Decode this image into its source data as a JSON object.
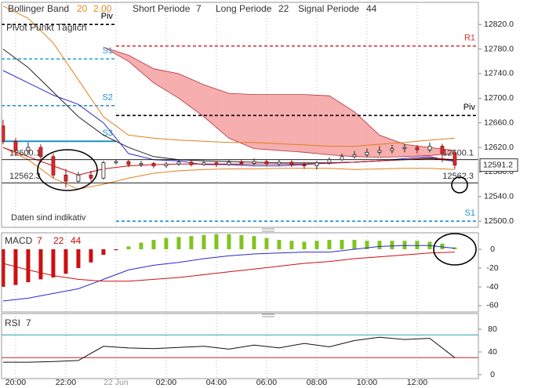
{
  "chart_data": [
    {
      "type": "candlestick",
      "indicators": {
        "bollinger_label": "Bollinger Band",
        "bollinger_period": 20,
        "bollinger_deviation": "2.00",
        "short_label": "Short Periode",
        "short": 7,
        "long_label": "Long Periode",
        "long": 22,
        "signal_label": "Signal Periode",
        "signal": 44
      },
      "pivot_title": "Pivot Punkt Täglich",
      "note": "Daten sind indikativ",
      "xlim": [
        -0.56,
        18.44
      ],
      "ylim": [
        12490,
        12856
      ],
      "yticks": [
        {
          "value": 12500,
          "label": "12500.0"
        },
        {
          "value": 12540,
          "label": "12540.0"
        },
        {
          "value": 12580,
          "label": "12580.0"
        },
        {
          "value": 12620,
          "label": "12620.0"
        },
        {
          "value": 12660,
          "label": "12660.0"
        },
        {
          "value": 12700,
          "label": "12700.0"
        },
        {
          "value": 12740,
          "label": "12740.0"
        },
        {
          "value": 12780,
          "label": "12780.0"
        },
        {
          "value": 12820,
          "label": "12820.0"
        }
      ],
      "x": [
        -0.5,
        0,
        0.5,
        1,
        1.5,
        2,
        2.5,
        3,
        3.5,
        4,
        4.5,
        5,
        5.5,
        6,
        6.5,
        7,
        7.5,
        8,
        8.5,
        9,
        9.5,
        10,
        10.5,
        11,
        11.5,
        12,
        12.5,
        13,
        13.5,
        14,
        14.5,
        15,
        15.5,
        16,
        16.5,
        17,
        17.5
      ],
      "open": [
        12655,
        12630,
        12615,
        12620,
        12605,
        12575,
        12565,
        12575,
        12570,
        12595,
        12597,
        12592,
        12594,
        12590,
        12593,
        12596,
        12592,
        12595,
        12592,
        12596,
        12594,
        12597,
        12593,
        12596,
        12592,
        12590,
        12595,
        12600,
        12605,
        12608,
        12612,
        12615,
        12618,
        12620,
        12616,
        12622,
        12610
      ],
      "high": [
        12665,
        12635,
        12628,
        12625,
        12610,
        12585,
        12580,
        12582,
        12598,
        12600,
        12600,
        12598,
        12596,
        12597,
        12600,
        12600,
        12599,
        12598,
        12600,
        12601,
        12602,
        12600,
        12600,
        12599,
        12596,
        12598,
        12604,
        12610,
        12614,
        12618,
        12622,
        12624,
        12626,
        12624,
        12628,
        12626,
        12612
      ],
      "low": [
        12625,
        12608,
        12610,
        12595,
        12570,
        12555,
        12562,
        12565,
        12568,
        12592,
        12588,
        12588,
        12586,
        12587,
        12590,
        12589,
        12590,
        12588,
        12590,
        12590,
        12591,
        12589,
        12590,
        12588,
        12585,
        12584,
        12592,
        12598,
        12602,
        12604,
        12608,
        12610,
        12612,
        12610,
        12612,
        12596,
        12585
      ],
      "close": [
        12630,
        12615,
        12620,
        12605,
        12575,
        12565,
        12575,
        12570,
        12595,
        12597,
        12592,
        12594,
        12590,
        12593,
        12596,
        12592,
        12595,
        12592,
        12596,
        12594,
        12597,
        12593,
        12596,
        12592,
        12590,
        12595,
        12600,
        12605,
        12608,
        12612,
        12615,
        12618,
        12620,
        12616,
        12622,
        12610,
        12591.2
      ],
      "up_color": "#ffffff",
      "down_color": "#e02828",
      "line_x": [
        -0.5,
        0.5,
        1.5,
        2.5,
        3.5,
        4.5,
        5.5,
        6.5,
        7.5,
        8.5,
        9.5,
        10.5,
        11.5,
        12.5,
        13.5,
        14.5,
        15.5,
        16.5,
        17.5
      ],
      "cloud": {
        "color": "#f4a0a0",
        "upper": [
          null,
          null,
          null,
          null,
          12783,
          12770,
          12748,
          12740,
          12722,
          12708,
          12706,
          12706,
          12706,
          12704,
          12678,
          12640,
          12625,
          12620,
          12615
        ],
        "lower": [
          null,
          null,
          null,
          null,
          12783,
          12760,
          12725,
          12700,
          12670,
          12635,
          12618,
          12615,
          12612,
          12608,
          12605,
          12604,
          12605,
          12607,
          12610
        ]
      },
      "lines": [
        {
          "color": "#e0801e",
          "values": [
            12850,
            12830,
            12790,
            12730,
            12670,
            12640,
            12635,
            12632,
            12630,
            12628,
            12628,
            12626,
            12624,
            12622,
            12622,
            12625,
            12628,
            12632,
            12635
          ]
        },
        {
          "color": "#e0801e",
          "values": [
            12620,
            12600,
            12570,
            12552,
            12560,
            12570,
            12578,
            12582,
            12584,
            12585,
            12585,
            12586,
            12586,
            12586,
            12584,
            12585,
            12586,
            12586,
            12584
          ]
        },
        {
          "color": "#222222",
          "values": [
            12780,
            12750,
            12710,
            12670,
            12640,
            12620,
            12605,
            12600,
            12598,
            12597,
            12596,
            12595,
            12595,
            12595,
            12596,
            12598,
            12600,
            12602,
            12598
          ]
        },
        {
          "color": "#2a2ad0",
          "values": [
            12745,
            12725,
            12705,
            12690,
            12660,
            12610,
            12600,
            12598,
            12592,
            12592,
            12590,
            12590,
            12592,
            12595,
            12596,
            12598,
            12602,
            12605,
            12597
          ]
        },
        {
          "color": "#cc1010",
          "values": [
            12620,
            12605,
            12590,
            12575,
            12585,
            12590,
            12592,
            12593,
            12593,
            12593,
            12593,
            12593,
            12593,
            12594,
            12596,
            12598,
            12600,
            12603,
            12600
          ]
        }
      ],
      "levels": [
        {
          "label": "Piv",
          "value": 12820,
          "x": [
            -0.56,
            4
          ],
          "color": "#000000",
          "dash": true
        },
        {
          "label": "S1",
          "value": 12764,
          "x": [
            -0.56,
            4
          ],
          "color": "#30a8d8",
          "dash": true
        },
        {
          "label": "S2",
          "value": 12688,
          "x": [
            -0.56,
            4
          ],
          "color": "#1890c8",
          "dash": true
        },
        {
          "label": "S3",
          "value": 12630,
          "x": [
            -0.56,
            4
          ],
          "color": "#1890c8",
          "dash": false
        },
        {
          "label": "R1",
          "value": 12785,
          "x": [
            4,
            18.44
          ],
          "color": "#e03030",
          "dash": true
        },
        {
          "label": "Piv",
          "value": 12672,
          "x": [
            4,
            18.44
          ],
          "color": "#000000",
          "dash": true
        },
        {
          "label": "S1",
          "value": 12500,
          "x": [
            4,
            18.44
          ],
          "color": "#1890c8",
          "dash": true
        }
      ],
      "price_labels": [
        12600.1,
        12562.3
      ],
      "last": 12591.2,
      "grid": true
    },
    {
      "type": "macd",
      "title": "MACD",
      "params": [
        7,
        22,
        44
      ],
      "xlim": [
        -0.56,
        18.44
      ],
      "ylim": [
        -66.7,
        17.5
      ],
      "yticks": [
        0,
        -20,
        -40,
        -60
      ],
      "x": [
        -0.5,
        0,
        0.5,
        1,
        1.5,
        2,
        2.5,
        3,
        3.5,
        4,
        4.5,
        5,
        5.5,
        6,
        6.5,
        7,
        7.5,
        8,
        8.5,
        9,
        9.5,
        10,
        10.5,
        11,
        11.5,
        12,
        12.5,
        13,
        13.5,
        14,
        14.5,
        15,
        15.5,
        16,
        16.5,
        17,
        17.5
      ],
      "values": [
        -40,
        -38,
        -35,
        -32,
        -30,
        -26,
        -20,
        -14,
        -6,
        -1,
        3,
        7,
        10,
        12,
        13,
        14,
        15,
        16,
        16,
        15,
        14,
        12,
        10,
        9,
        8,
        9,
        10,
        10,
        10,
        9,
        9,
        9,
        9,
        9,
        8,
        6,
        2
      ],
      "positive_color": "#80c420",
      "negative_color": "#cc1010",
      "line_x": [
        -0.5,
        0.5,
        1.5,
        2.5,
        3.5,
        4.5,
        5.5,
        6.5,
        7.5,
        8.5,
        9.5,
        10.5,
        11.5,
        12.5,
        13.5,
        14.5,
        15.5,
        16.5,
        17.5
      ],
      "lines": [
        {
          "color": "#2a2ad0",
          "values": [
            -55,
            -52,
            -47,
            -42,
            -32,
            -22,
            -17,
            -14,
            -10,
            -7,
            -5,
            -4,
            -3,
            -3,
            0,
            3,
            4,
            4,
            1
          ]
        },
        {
          "color": "#cc1010",
          "values": [
            -15,
            -22,
            -28,
            -32,
            -34,
            -34,
            -32,
            -30,
            -27,
            -24,
            -21,
            -18,
            -15,
            -13,
            -10,
            -8,
            -6,
            -4,
            -3
          ]
        }
      ],
      "grid": true
    },
    {
      "type": "line",
      "title": "RSI",
      "period": 7,
      "xlim": [
        -0.56,
        18.44
      ],
      "ylim": [
        -6.9,
        107.6
      ],
      "yticks": [
        0,
        40,
        80
      ],
      "xticks": [
        {
          "value": 0,
          "label": "20:00"
        },
        {
          "value": 2,
          "label": "22:00"
        },
        {
          "value": 4,
          "label": "22 Jun"
        },
        {
          "value": 6,
          "label": "02:00"
        },
        {
          "value": 8,
          "label": "04:00"
        },
        {
          "value": 10,
          "label": "06:00"
        },
        {
          "value": 12,
          "label": "08:00"
        },
        {
          "value": 14,
          "label": "10:00"
        },
        {
          "value": 16,
          "label": "12:00"
        }
      ],
      "x": [
        -0.5,
        0.5,
        1.5,
        2.5,
        3.5,
        4.5,
        5.5,
        6.5,
        7.5,
        8.5,
        9.5,
        10.5,
        11.5,
        12.5,
        13.5,
        14.5,
        15.5,
        16.5,
        17.5
      ],
      "values": [
        22,
        22,
        23,
        25,
        50,
        47,
        46,
        48,
        50,
        45,
        52,
        47,
        55,
        49,
        60,
        66,
        62,
        64,
        30
      ],
      "color": "#111111",
      "levels": [
        {
          "value": 70,
          "color": "#2a9d9d"
        },
        {
          "value": 30,
          "color": "#cc2222"
        }
      ],
      "grid": true
    }
  ]
}
